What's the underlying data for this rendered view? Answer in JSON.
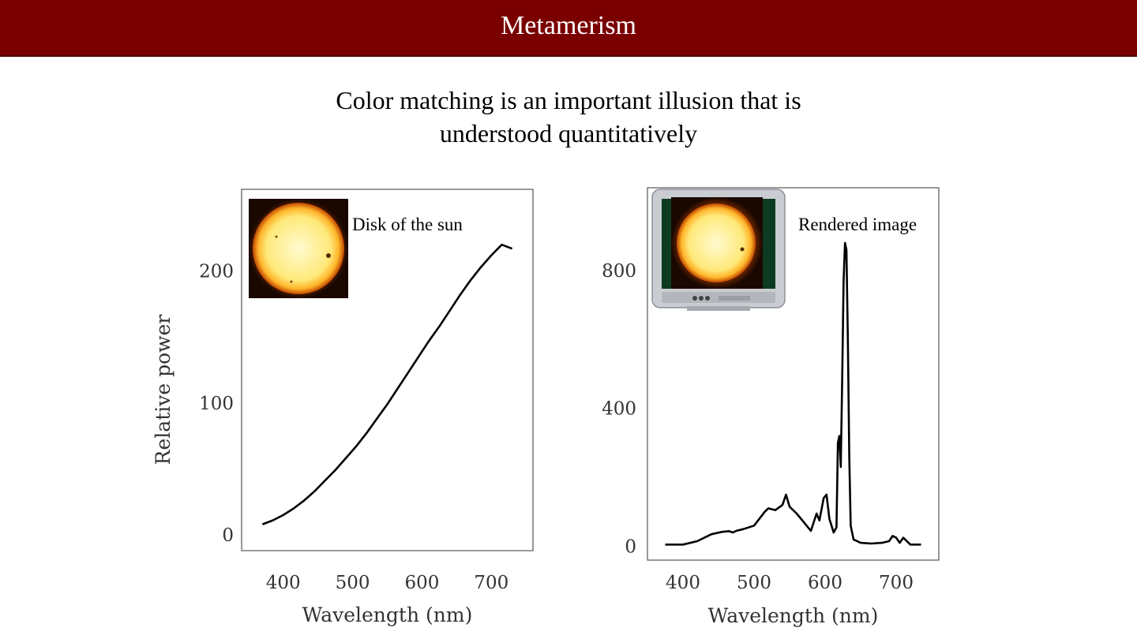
{
  "slide": {
    "title": "Metamerism",
    "subtitle_line1": "Color matching is an important illusion that is",
    "subtitle_line2": "understood quantitatively"
  },
  "colors": {
    "title_bar": "#7a0000",
    "line": "#000000",
    "sun_core": "#fff3a8",
    "sun_corona": "#e07800"
  },
  "chart_data": [
    {
      "type": "line",
      "annotation": "Disk of the sun",
      "xlabel": "Wavelength (nm)",
      "ylabel": "Relative power",
      "xlim": [
        340,
        760
      ],
      "ylim": [
        -12,
        262
      ],
      "xticks": [
        400,
        500,
        600,
        700
      ],
      "yticks": [
        0,
        100,
        200
      ],
      "series": [
        {
          "x": [
            370,
            385,
            400,
            415,
            430,
            445,
            460,
            475,
            490,
            505,
            520,
            535,
            550,
            565,
            580,
            595,
            610,
            625,
            640,
            655,
            670,
            685,
            700,
            715,
            730
          ],
          "y": [
            8,
            11,
            15,
            20,
            26,
            33,
            41,
            49,
            58,
            67,
            77,
            88,
            99,
            111,
            123,
            135,
            147,
            158,
            170,
            182,
            193,
            203,
            212,
            220,
            217
          ]
        }
      ]
    },
    {
      "type": "line",
      "annotation": "Rendered image",
      "xlabel": "Wavelength (nm)",
      "ylabel": "",
      "xlim": [
        350,
        760
      ],
      "ylim": [
        -40,
        1040
      ],
      "xticks": [
        400,
        500,
        600,
        700
      ],
      "yticks": [
        0,
        400,
        800
      ],
      "series": [
        {
          "x": [
            375,
            400,
            420,
            440,
            455,
            465,
            470,
            475,
            485,
            500,
            515,
            520,
            530,
            540,
            545,
            550,
            560,
            570,
            580,
            588,
            592,
            598,
            602,
            606,
            612,
            616,
            618,
            620,
            622,
            624,
            626,
            628,
            630,
            632,
            634,
            636,
            640,
            650,
            665,
            680,
            690,
            695,
            700,
            705,
            710,
            720,
            735
          ],
          "y": [
            5,
            5,
            15,
            35,
            42,
            44,
            40,
            45,
            50,
            60,
            100,
            110,
            105,
            120,
            150,
            115,
            95,
            70,
            45,
            95,
            75,
            140,
            150,
            80,
            40,
            55,
            300,
            320,
            230,
            480,
            770,
            880,
            860,
            600,
            260,
            60,
            20,
            10,
            8,
            10,
            15,
            30,
            25,
            10,
            25,
            5,
            5
          ]
        }
      ]
    }
  ]
}
